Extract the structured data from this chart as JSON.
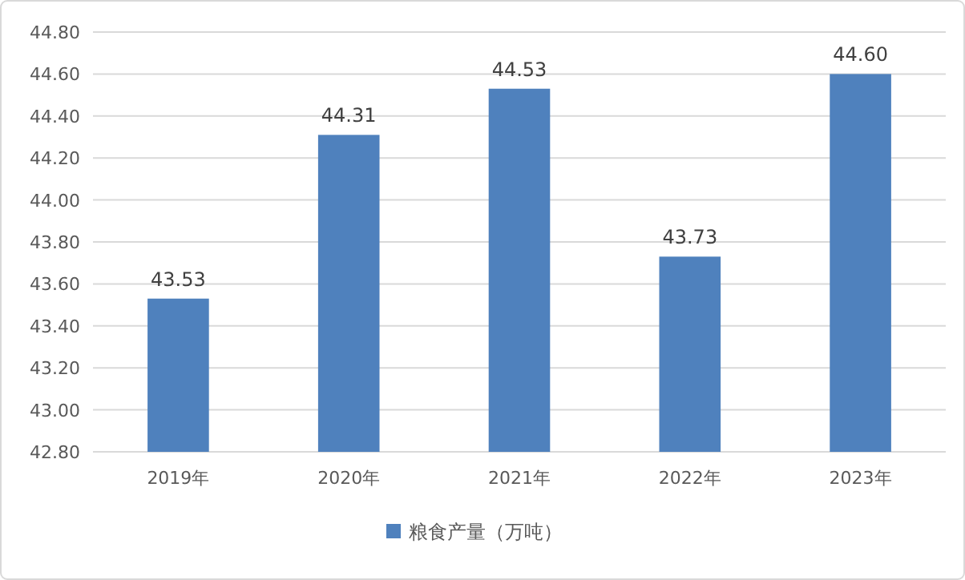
{
  "chart_data": {
    "type": "bar",
    "categories": [
      "2019年",
      "2020年",
      "2021年",
      "2022年",
      "2023年"
    ],
    "series": [
      {
        "name": "粮食产量（万吨）",
        "color": "#4f81bd",
        "values": [
          43.53,
          44.31,
          44.53,
          43.73,
          44.6
        ],
        "value_labels": [
          "43.53",
          "44.31",
          "44.53",
          "43.73",
          "44.60"
        ]
      }
    ],
    "ylim": [
      42.8,
      44.8
    ],
    "yticks": [
      {
        "value": 42.8,
        "label": "42.80"
      },
      {
        "value": 43.0,
        "label": "43.00"
      },
      {
        "value": 43.2,
        "label": "43.20"
      },
      {
        "value": 43.4,
        "label": "43.40"
      },
      {
        "value": 43.6,
        "label": "43.60"
      },
      {
        "value": 43.8,
        "label": "43.80"
      },
      {
        "value": 44.0,
        "label": "44.00"
      },
      {
        "value": 44.2,
        "label": "44.20"
      },
      {
        "value": 44.4,
        "label": "44.40"
      },
      {
        "value": 44.6,
        "label": "44.60"
      },
      {
        "value": 44.8,
        "label": "44.80"
      }
    ],
    "grid": "y",
    "legend": "bottom"
  }
}
